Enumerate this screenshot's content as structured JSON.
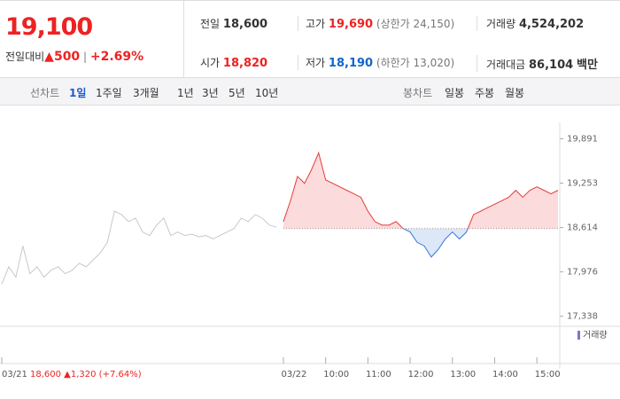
{
  "header": {
    "price": "19,100",
    "change_label": "전일대비",
    "change": "500",
    "change_rate": "+2.69%",
    "info": [
      {
        "label": "전일",
        "value": "18,600"
      },
      {
        "label": "고가",
        "value": "19,690",
        "note": "(상한가 24,150)"
      },
      {
        "label": "거래량",
        "value": "4,524,202"
      },
      {
        "label": "시가",
        "value": "18,820"
      },
      {
        "label": "저가",
        "value": "18,190",
        "note": "(하한가 13,020)"
      },
      {
        "label": "거래대금",
        "value": "86,104",
        "unit": "백만"
      }
    ]
  },
  "tabs": {
    "line_label": "선차트",
    "line": [
      "1일",
      "1주일",
      "3개월",
      "1년",
      "3년",
      "5년",
      "10년"
    ],
    "candle_label": "봉차트",
    "candle": [
      "일봉",
      "주봉",
      "월봉"
    ]
  },
  "chart_data": {
    "type": "line",
    "volume_legend": "거래량",
    "categories": [
      "03/21",
      null,
      null,
      null,
      null,
      null,
      null,
      null,
      null,
      null,
      null,
      null,
      null,
      null,
      null,
      null,
      null,
      null,
      null,
      null,
      null,
      null,
      null,
      null,
      null,
      null,
      null,
      null,
      null,
      null,
      null,
      null,
      null,
      null,
      null,
      null,
      null,
      null,
      null,
      null,
      "03/22",
      null,
      null,
      null,
      null,
      null,
      "10:00",
      null,
      null,
      null,
      null,
      null,
      "11:00",
      null,
      null,
      null,
      null,
      null,
      "12:00",
      null,
      null,
      null,
      null,
      null,
      "13:00",
      null,
      null,
      null,
      null,
      null,
      "14:00",
      null,
      null,
      null,
      null,
      null,
      "15:00",
      null,
      null,
      null
    ],
    "series": [
      {
        "name": "03/21",
        "color": "#c8c8c8",
        "values": [
          17800,
          18050,
          17900,
          18350,
          17950,
          18050,
          17900,
          18000,
          18050,
          17950,
          18000,
          18100,
          18050,
          18150,
          18250,
          18400,
          18850,
          18800,
          18700,
          18750,
          18550,
          18500,
          18650,
          18750,
          18500,
          18550,
          18500,
          18520,
          18480,
          18500,
          18450,
          18500,
          18550,
          18600,
          18750,
          18700,
          18800,
          18750,
          18650,
          18620,
          null,
          null,
          null,
          null,
          null,
          null,
          null,
          null,
          null,
          null,
          null,
          null,
          null,
          null,
          null,
          null,
          null,
          null,
          null,
          null,
          null,
          null,
          null,
          null,
          null,
          null,
          null,
          null,
          null,
          null,
          null,
          null,
          null,
          null,
          null,
          null,
          null,
          null,
          null,
          null
        ]
      },
      {
        "name": "03/22",
        "color": "#e83a3a",
        "values": [
          null,
          null,
          null,
          null,
          null,
          null,
          null,
          null,
          null,
          null,
          null,
          null,
          null,
          null,
          null,
          null,
          null,
          null,
          null,
          null,
          null,
          null,
          null,
          null,
          null,
          null,
          null,
          null,
          null,
          null,
          null,
          null,
          null,
          null,
          null,
          null,
          null,
          null,
          null,
          null,
          18700,
          19000,
          19350,
          19250,
          19450,
          19690,
          19300,
          19250,
          19200,
          19150,
          19100,
          19050,
          18850,
          18700,
          18650,
          18650,
          18700,
          18600,
          18550,
          18400,
          18350,
          18190,
          18300,
          18450,
          18550,
          18450,
          18550,
          18800,
          18850,
          18900,
          18950,
          19000,
          19050,
          19150,
          19050,
          19150,
          19200,
          19150,
          19100,
          19150
        ]
      }
    ],
    "baseline": 18600,
    "up_color": "#e83a3a",
    "down_color": "#3b78d8",
    "ylim": [
      17270,
      20000
    ],
    "yticks": [
      {
        "value": 19891,
        "label": "19,891"
      },
      {
        "value": 19253,
        "label": "19,253"
      },
      {
        "value": 18614,
        "label": "18,614"
      },
      {
        "value": 17976,
        "label": "17,976"
      },
      {
        "value": 17338,
        "label": "17,338"
      }
    ],
    "footer": {
      "date": "03/21",
      "summary": "18,600 ▲1,320 (+7.64%)"
    }
  }
}
